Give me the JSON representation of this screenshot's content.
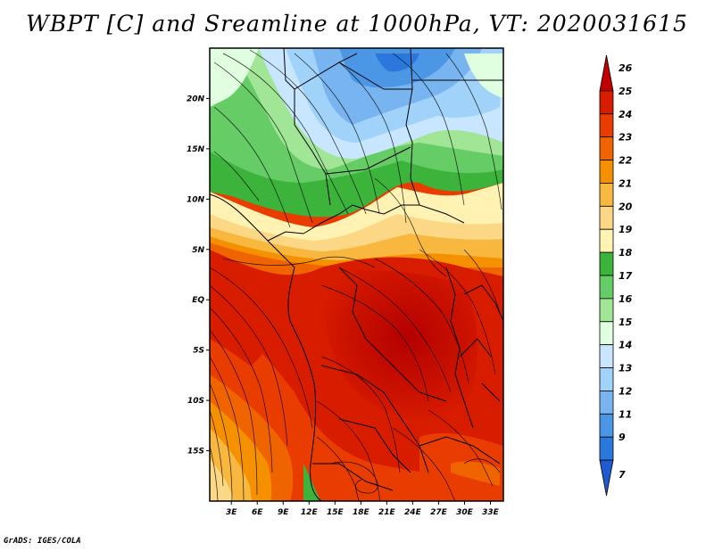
{
  "title": "WBPT [C] and Sreamline at 1000hPa, VT: 2020031615",
  "credit": "GrADS: IGES/COLA",
  "map": {
    "lat_labels": [
      "20N",
      "15N",
      "10N",
      "5N",
      "EQ",
      "5S",
      "10S",
      "15S"
    ],
    "lat_values": [
      20,
      15,
      10,
      5,
      0,
      -5,
      -10,
      -15
    ],
    "lon_labels": [
      "3E",
      "6E",
      "9E",
      "12E",
      "15E",
      "18E",
      "21E",
      "24E",
      "27E",
      "30E",
      "33E"
    ],
    "lon_values": [
      3,
      6,
      9,
      12,
      15,
      18,
      21,
      24,
      27,
      30,
      33
    ],
    "lon_range": [
      0.5,
      34.5
    ],
    "lat_range": [
      -20,
      25
    ]
  },
  "colorbar": {
    "labels": [
      "26",
      "25",
      "24",
      "23",
      "22",
      "21",
      "20",
      "19",
      "18",
      "17",
      "16",
      "15",
      "14",
      "13",
      "12",
      "11",
      "9",
      "7"
    ],
    "colors": [
      "#c00000",
      "#d81c00",
      "#e83c00",
      "#f06400",
      "#f59000",
      "#f8b840",
      "#fcd886",
      "#fff2b3",
      "#3cb43c",
      "#66cc66",
      "#a0e696",
      "#e0ffe0",
      "#c8e6ff",
      "#a0d2fa",
      "#78b4f0",
      "#4c96e6",
      "#2a78dc",
      "#1e5ad2"
    ]
  }
}
